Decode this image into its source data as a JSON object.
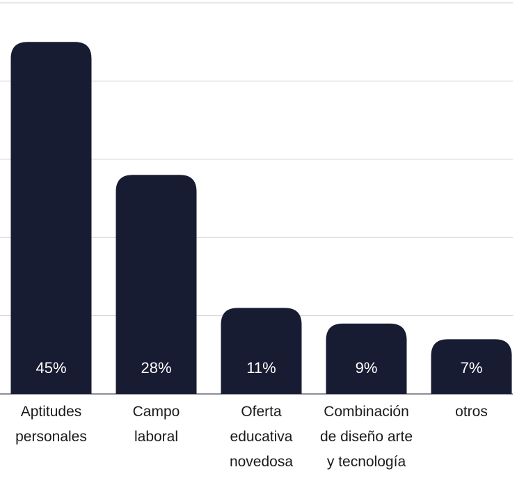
{
  "chart_data": {
    "type": "bar",
    "categories": [
      "Aptitudes personales",
      "Campo laboral",
      "Oferta educativa novedosa",
      "Combinación de diseño arte y tecnología",
      "otros"
    ],
    "values": [
      45,
      28,
      11,
      9,
      7
    ],
    "value_labels": [
      "45%",
      "28%",
      "11%",
      "9%",
      "7%"
    ],
    "color": "#181c32",
    "ylim": [
      0,
      50
    ],
    "yticks": [
      0,
      10,
      20,
      30,
      40,
      50
    ],
    "grid": true
  }
}
